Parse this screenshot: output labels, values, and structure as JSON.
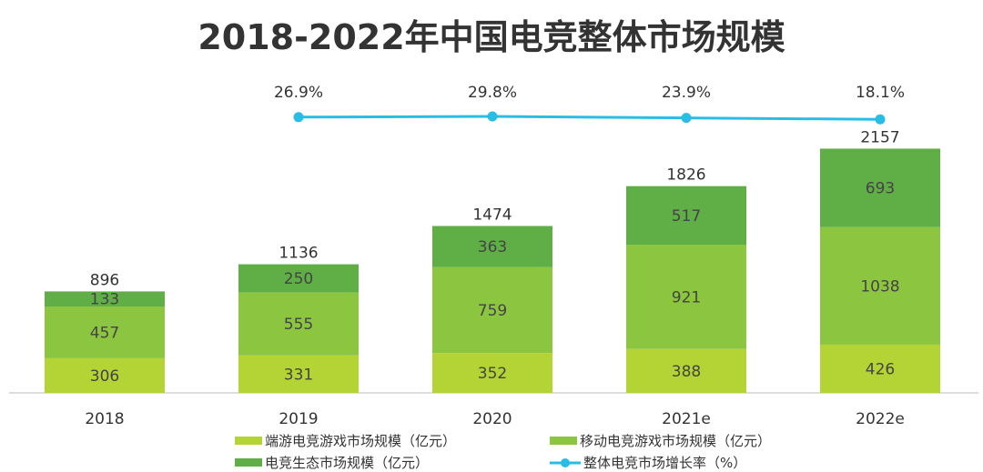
{
  "chart_data": {
    "type": "bar",
    "stacked": true,
    "title": "2018-2022年中国电竞整体市场规模",
    "categories": [
      "2018",
      "2019",
      "2020",
      "2021e",
      "2022e"
    ],
    "series": [
      {
        "name": "端游电竞游戏市场规模（亿元）",
        "values": [
          306,
          331,
          352,
          388,
          426
        ],
        "color": "#b4d334"
      },
      {
        "name": "移动电竞游戏市场规模（亿元）",
        "values": [
          457,
          555,
          759,
          921,
          1038
        ],
        "color": "#8cc540"
      },
      {
        "name": "电竞生态市场规模（亿元）",
        "values": [
          133,
          250,
          363,
          517,
          693
        ],
        "color": "#5fae46"
      }
    ],
    "totals": [
      896,
      1136,
      1474,
      1826,
      2157
    ],
    "line": {
      "name": "整体电竞市场增长率（%）",
      "categories": [
        "2019",
        "2020",
        "2021e",
        "2022e"
      ],
      "values": [
        26.9,
        29.8,
        23.9,
        18.1
      ],
      "labels": [
        "26.9%",
        "29.8%",
        "23.9%",
        "18.1%"
      ],
      "color": "#29bde6"
    },
    "ylim": [
      0,
      2300
    ],
    "grid": false,
    "legend_position": "bottom"
  }
}
